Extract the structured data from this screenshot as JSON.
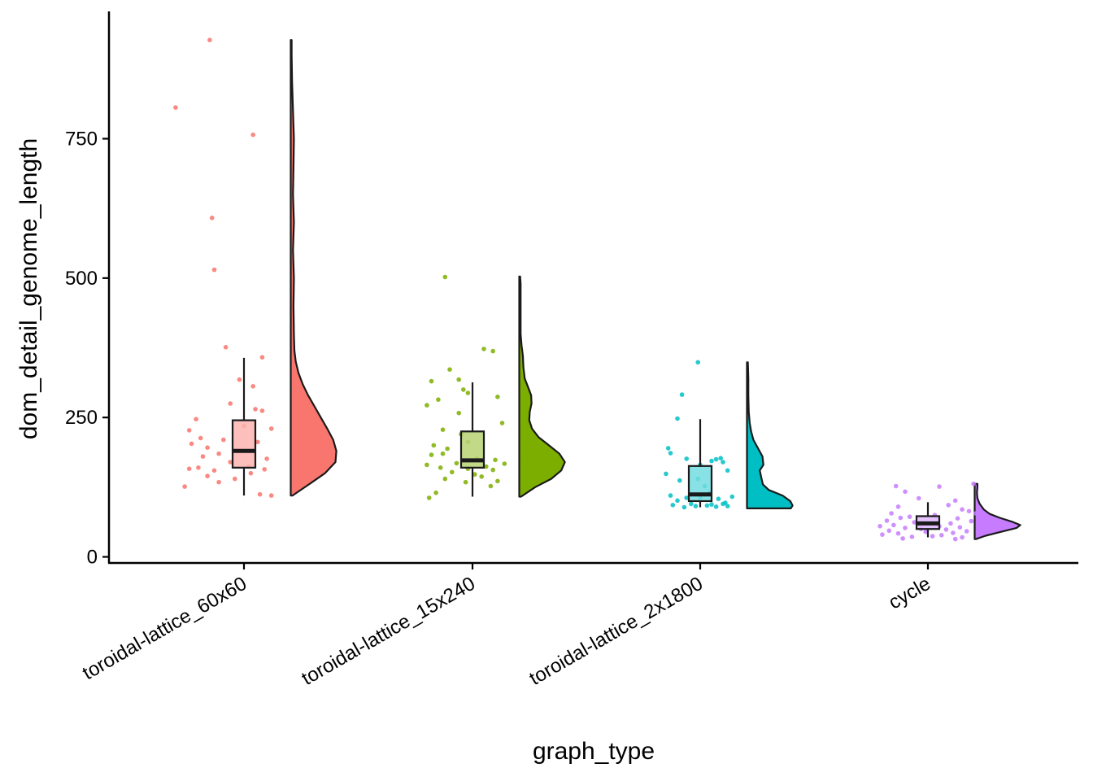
{
  "chart_data": {
    "type": "raincloud",
    "xlabel": "graph_type",
    "ylabel": "dom_detail_genome_length",
    "y_ticks": [
      0,
      250,
      500,
      750
    ],
    "y_tick_labels": [
      "0",
      "250",
      "500",
      "750"
    ],
    "ylim": [
      -12,
      975
    ],
    "grid": false,
    "legend": "none",
    "categories": [
      {
        "name": "toroidal-lattice_60x60",
        "color": "#F8766D",
        "box": {
          "lower_whisker": 110,
          "q1": 160,
          "median": 190,
          "q3": 245,
          "upper_whisker": 357
        },
        "points": [
          {
            "dx": -0.15,
            "y": 927
          },
          {
            "dx": -0.3,
            "y": 806
          },
          {
            "dx": 0.04,
            "y": 757
          },
          {
            "dx": -0.14,
            "y": 608
          },
          {
            "dx": -0.13,
            "y": 515
          },
          {
            "dx": -0.08,
            "y": 376
          },
          {
            "dx": 0.08,
            "y": 358
          },
          {
            "dx": -0.02,
            "y": 318
          },
          {
            "dx": 0.04,
            "y": 306
          },
          {
            "dx": -0.06,
            "y": 275
          },
          {
            "dx": 0.05,
            "y": 265
          },
          {
            "dx": 0.08,
            "y": 262
          },
          {
            "dx": -0.21,
            "y": 247
          },
          {
            "dx": 0.12,
            "y": 230
          },
          {
            "dx": -0.24,
            "y": 227
          },
          {
            "dx": 0.0,
            "y": 235
          },
          {
            "dx": -0.19,
            "y": 213
          },
          {
            "dx": -0.23,
            "y": 203
          },
          {
            "dx": -0.09,
            "y": 210
          },
          {
            "dx": -0.16,
            "y": 196
          },
          {
            "dx": 0.06,
            "y": 206
          },
          {
            "dx": -0.11,
            "y": 185
          },
          {
            "dx": -0.18,
            "y": 180
          },
          {
            "dx": 0.1,
            "y": 176
          },
          {
            "dx": -0.06,
            "y": 170
          },
          {
            "dx": 0.02,
            "y": 162
          },
          {
            "dx": -0.2,
            "y": 160
          },
          {
            "dx": -0.24,
            "y": 158
          },
          {
            "dx": 0.09,
            "y": 157
          },
          {
            "dx": -0.13,
            "y": 155
          },
          {
            "dx": 0.03,
            "y": 150
          },
          {
            "dx": -0.16,
            "y": 145
          },
          {
            "dx": -0.04,
            "y": 140
          },
          {
            "dx": -0.11,
            "y": 134
          },
          {
            "dx": -0.26,
            "y": 126
          },
          {
            "dx": 0.07,
            "y": 112
          },
          {
            "dx": 0.12,
            "y": 110
          }
        ],
        "density": [
          [
            110,
            0.04
          ],
          [
            130,
            0.4
          ],
          [
            150,
            0.75
          ],
          [
            170,
            0.98
          ],
          [
            190,
            1.0
          ],
          [
            210,
            0.93
          ],
          [
            230,
            0.8
          ],
          [
            250,
            0.66
          ],
          [
            270,
            0.52
          ],
          [
            290,
            0.38
          ],
          [
            310,
            0.26
          ],
          [
            330,
            0.17
          ],
          [
            350,
            0.11
          ],
          [
            370,
            0.08
          ],
          [
            400,
            0.07
          ],
          [
            450,
            0.06
          ],
          [
            500,
            0.07
          ],
          [
            550,
            0.05
          ],
          [
            600,
            0.07
          ],
          [
            650,
            0.05
          ],
          [
            700,
            0.06
          ],
          [
            750,
            0.07
          ],
          [
            800,
            0.05
          ],
          [
            850,
            0.03
          ],
          [
            900,
            0.02
          ],
          [
            927,
            0.02
          ]
        ]
      },
      {
        "name": "toroidal-lattice_15x240",
        "color": "#7CAE00",
        "box": {
          "lower_whisker": 108,
          "q1": 160,
          "median": 173,
          "q3": 225,
          "upper_whisker": 313
        },
        "points": [
          {
            "dx": -0.12,
            "y": 502
          },
          {
            "dx": 0.05,
            "y": 373
          },
          {
            "dx": 0.09,
            "y": 369
          },
          {
            "dx": -0.1,
            "y": 336
          },
          {
            "dx": -0.06,
            "y": 318
          },
          {
            "dx": -0.18,
            "y": 315
          },
          {
            "dx": -0.04,
            "y": 300
          },
          {
            "dx": -0.02,
            "y": 294
          },
          {
            "dx": 0.11,
            "y": 287
          },
          {
            "dx": -0.15,
            "y": 282
          },
          {
            "dx": -0.2,
            "y": 272
          },
          {
            "dx": -0.06,
            "y": 258
          },
          {
            "dx": 0.13,
            "y": 240
          },
          {
            "dx": -0.13,
            "y": 228
          },
          {
            "dx": -0.05,
            "y": 220
          },
          {
            "dx": -0.02,
            "y": 206
          },
          {
            "dx": -0.17,
            "y": 200
          },
          {
            "dx": -0.11,
            "y": 194
          },
          {
            "dx": -0.13,
            "y": 185
          },
          {
            "dx": -0.18,
            "y": 183
          },
          {
            "dx": 0.02,
            "y": 176
          },
          {
            "dx": 0.1,
            "y": 174
          },
          {
            "dx": -0.07,
            "y": 168
          },
          {
            "dx": 0.14,
            "y": 167
          },
          {
            "dx": -0.2,
            "y": 165
          },
          {
            "dx": 0.06,
            "y": 162
          },
          {
            "dx": -0.14,
            "y": 160
          },
          {
            "dx": -0.02,
            "y": 158
          },
          {
            "dx": 0.09,
            "y": 156
          },
          {
            "dx": -0.09,
            "y": 152
          },
          {
            "dx": 0.01,
            "y": 148
          },
          {
            "dx": 0.04,
            "y": 144
          },
          {
            "dx": -0.12,
            "y": 140
          },
          {
            "dx": 0.11,
            "y": 136
          },
          {
            "dx": -0.03,
            "y": 134
          },
          {
            "dx": 0.08,
            "y": 127
          },
          {
            "dx": -0.16,
            "y": 115
          },
          {
            "dx": -0.19,
            "y": 106
          }
        ],
        "density": [
          [
            108,
            0.04
          ],
          [
            125,
            0.35
          ],
          [
            140,
            0.7
          ],
          [
            155,
            0.92
          ],
          [
            170,
            1.0
          ],
          [
            185,
            0.88
          ],
          [
            200,
            0.65
          ],
          [
            215,
            0.42
          ],
          [
            230,
            0.28
          ],
          [
            245,
            0.22
          ],
          [
            260,
            0.23
          ],
          [
            275,
            0.27
          ],
          [
            290,
            0.26
          ],
          [
            305,
            0.19
          ],
          [
            320,
            0.12
          ],
          [
            340,
            0.09
          ],
          [
            360,
            0.08
          ],
          [
            380,
            0.05
          ],
          [
            400,
            0.03
          ],
          [
            430,
            0.03
          ],
          [
            460,
            0.03
          ],
          [
            490,
            0.03
          ],
          [
            503,
            0.02
          ]
        ]
      },
      {
        "name": "toroidal-lattice_2x1800",
        "color": "#00BFC4",
        "box": {
          "lower_whisker": 89,
          "q1": 100,
          "median": 112,
          "q3": 163,
          "upper_whisker": 247
        },
        "points": [
          {
            "dx": -0.01,
            "y": 349
          },
          {
            "dx": -0.08,
            "y": 291
          },
          {
            "dx": -0.1,
            "y": 248
          },
          {
            "dx": -0.14,
            "y": 195
          },
          {
            "dx": -0.13,
            "y": 186
          },
          {
            "dx": 0.09,
            "y": 177
          },
          {
            "dx": 0.07,
            "y": 175
          },
          {
            "dx": 0.05,
            "y": 172
          },
          {
            "dx": -0.06,
            "y": 176
          },
          {
            "dx": 0.1,
            "y": 170
          },
          {
            "dx": 0.0,
            "y": 165
          },
          {
            "dx": -0.15,
            "y": 149
          },
          {
            "dx": 0.12,
            "y": 155
          },
          {
            "dx": -0.01,
            "y": 140
          },
          {
            "dx": -0.09,
            "y": 137
          },
          {
            "dx": 0.02,
            "y": 127
          },
          {
            "dx": 0.04,
            "y": 115
          },
          {
            "dx": -0.13,
            "y": 110
          },
          {
            "dx": -0.06,
            "y": 106
          },
          {
            "dx": 0.0,
            "y": 107
          },
          {
            "dx": 0.08,
            "y": 104
          },
          {
            "dx": 0.14,
            "y": 108
          },
          {
            "dx": -0.1,
            "y": 101
          },
          {
            "dx": 0.11,
            "y": 97
          },
          {
            "dx": -0.04,
            "y": 95
          },
          {
            "dx": 0.05,
            "y": 94
          },
          {
            "dx": -0.12,
            "y": 93
          },
          {
            "dx": 0.03,
            "y": 92
          },
          {
            "dx": -0.02,
            "y": 91
          },
          {
            "dx": 0.07,
            "y": 90
          },
          {
            "dx": -0.07,
            "y": 89
          },
          {
            "dx": 0.12,
            "y": 91
          },
          {
            "dx": 0.1,
            "y": 95
          }
        ],
        "density": [
          [
            87,
            0.96
          ],
          [
            92,
            1.0
          ],
          [
            100,
            0.95
          ],
          [
            110,
            0.78
          ],
          [
            120,
            0.48
          ],
          [
            130,
            0.35
          ],
          [
            140,
            0.32
          ],
          [
            155,
            0.28
          ],
          [
            165,
            0.36
          ],
          [
            180,
            0.34
          ],
          [
            195,
            0.24
          ],
          [
            210,
            0.14
          ],
          [
            225,
            0.09
          ],
          [
            240,
            0.06
          ],
          [
            260,
            0.04
          ],
          [
            290,
            0.03
          ],
          [
            320,
            0.03
          ],
          [
            349,
            0.02
          ]
        ]
      },
      {
        "name": "cycle",
        "color": "#C77CFF",
        "box": {
          "lower_whisker": 35,
          "q1": 50,
          "median": 60,
          "q3": 73,
          "upper_whisker": 98
        },
        "points": [
          {
            "dx": 0.2,
            "y": 131
          },
          {
            "dx": 0.05,
            "y": 126
          },
          {
            "dx": -0.14,
            "y": 127
          },
          {
            "dx": -0.1,
            "y": 117
          },
          {
            "dx": -0.04,
            "y": 105
          },
          {
            "dx": 0.12,
            "y": 101
          },
          {
            "dx": 0.09,
            "y": 93
          },
          {
            "dx": -0.13,
            "y": 90
          },
          {
            "dx": 0.15,
            "y": 85
          },
          {
            "dx": 0.18,
            "y": 82
          },
          {
            "dx": -0.16,
            "y": 78
          },
          {
            "dx": 0.21,
            "y": 78
          },
          {
            "dx": 0.03,
            "y": 75
          },
          {
            "dx": -0.08,
            "y": 72
          },
          {
            "dx": -0.12,
            "y": 70
          },
          {
            "dx": 0.13,
            "y": 69
          },
          {
            "dx": -0.18,
            "y": 65
          },
          {
            "dx": 0.19,
            "y": 64
          },
          {
            "dx": -0.06,
            "y": 62
          },
          {
            "dx": 0.1,
            "y": 60
          },
          {
            "dx": -0.15,
            "y": 57
          },
          {
            "dx": -0.21,
            "y": 55
          },
          {
            "dx": 0.05,
            "y": 55
          },
          {
            "dx": 0.14,
            "y": 53
          },
          {
            "dx": -0.1,
            "y": 52
          },
          {
            "dx": -0.03,
            "y": 50
          },
          {
            "dx": 0.08,
            "y": 49
          },
          {
            "dx": -0.17,
            "y": 47
          },
          {
            "dx": 0.17,
            "y": 46
          },
          {
            "dx": -0.01,
            "y": 45
          },
          {
            "dx": 0.11,
            "y": 43
          },
          {
            "dx": -0.13,
            "y": 42
          },
          {
            "dx": -0.2,
            "y": 40
          },
          {
            "dx": 0.06,
            "y": 39
          },
          {
            "dx": 0.02,
            "y": 37
          },
          {
            "dx": -0.07,
            "y": 36
          },
          {
            "dx": 0.15,
            "y": 35
          },
          {
            "dx": -0.11,
            "y": 33
          },
          {
            "dx": 0.12,
            "y": 32
          }
        ],
        "density": [
          [
            32,
            0.03
          ],
          [
            38,
            0.24
          ],
          [
            45,
            0.58
          ],
          [
            52,
            0.92
          ],
          [
            57,
            1.0
          ],
          [
            63,
            0.82
          ],
          [
            70,
            0.55
          ],
          [
            77,
            0.33
          ],
          [
            85,
            0.2
          ],
          [
            95,
            0.11
          ],
          [
            105,
            0.06
          ],
          [
            115,
            0.05
          ],
          [
            125,
            0.06
          ],
          [
            131,
            0.06
          ]
        ]
      }
    ]
  }
}
